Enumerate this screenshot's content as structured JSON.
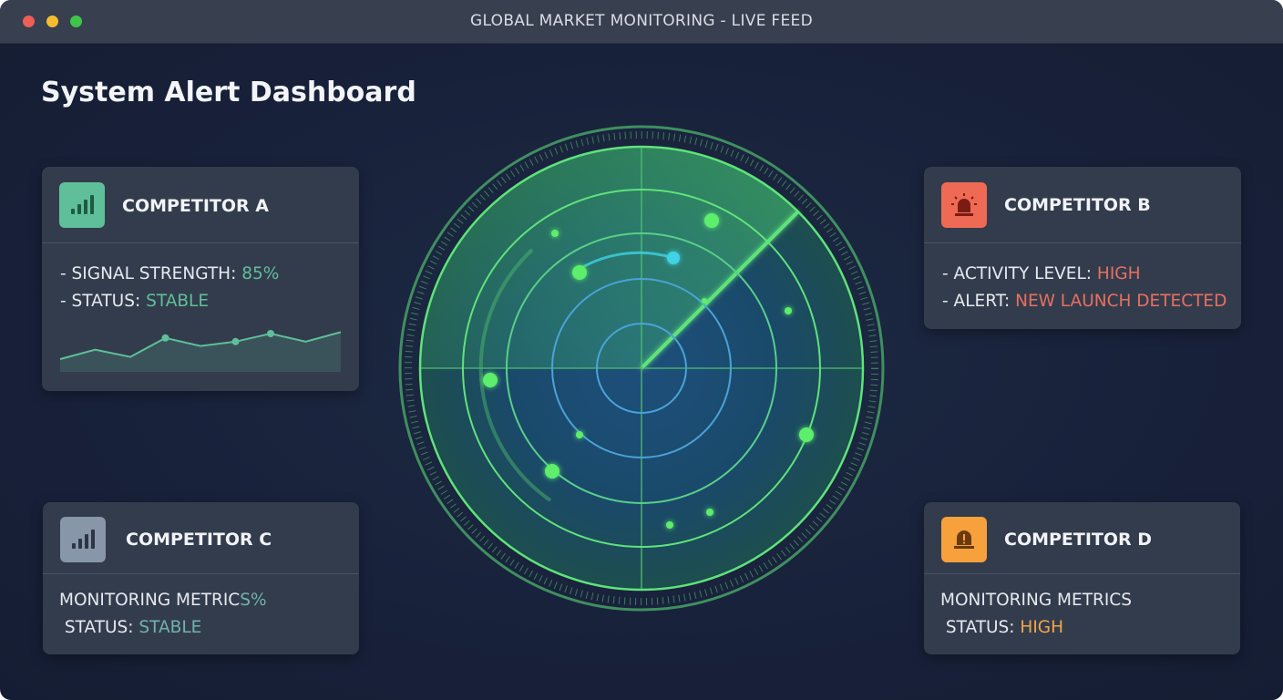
{
  "window": {
    "title": "GLOBAL MARKET MONITORING - LIVE FEED",
    "controls": [
      {
        "name": "close",
        "color": "#ee5f57"
      },
      {
        "name": "minimize",
        "color": "#f4bd2f"
      },
      {
        "name": "maximize",
        "color": "#3fc54a"
      }
    ]
  },
  "page_title": "System Alert Dashboard",
  "cards": {
    "a": {
      "name": "COMPETITOR A",
      "icon": "signal-bars-icon",
      "icon_color": "#5fbf9a",
      "l1_label": "- SIGNAL STRENGTH: ",
      "l1_value": "85%",
      "l2_label": "- STATUS: ",
      "l2_value": "STABLE",
      "sparkline": [
        10,
        23,
        13,
        39,
        28,
        34,
        45,
        34,
        47
      ],
      "sparkline_markers": [
        3,
        5,
        6
      ]
    },
    "b": {
      "name": "COMPETITOR B",
      "icon": "siren-icon",
      "icon_color": "#ee6a55",
      "l1_label": "- ACTIVITY LEVEL: ",
      "l1_value": "HIGH",
      "l2_label": "- ALERT: ",
      "l2_value": "NEW LAUNCH DETECTED"
    },
    "c": {
      "name": "COMPETITOR C",
      "icon": "signal-bars-icon",
      "icon_color": "#8796a8",
      "l1_label": "MONITORING METRIC",
      "l1_value": "S%",
      "l2_label": " STATUS: ",
      "l2_value": "STABLE"
    },
    "d": {
      "name": "COMPETITOR D",
      "icon": "warning-beacon-icon",
      "icon_color": "#f6a13c",
      "l1_label": "MONITORING METRICS",
      "l2_label": " STATUS: ",
      "l2_value": "HIGH"
    }
  },
  "radar": {
    "colors": {
      "ring": "#5fe37a",
      "inner_ring": "#4aa3d8",
      "blip": "#5dee6c",
      "blip_cyan": "#3fd3e6"
    }
  }
}
